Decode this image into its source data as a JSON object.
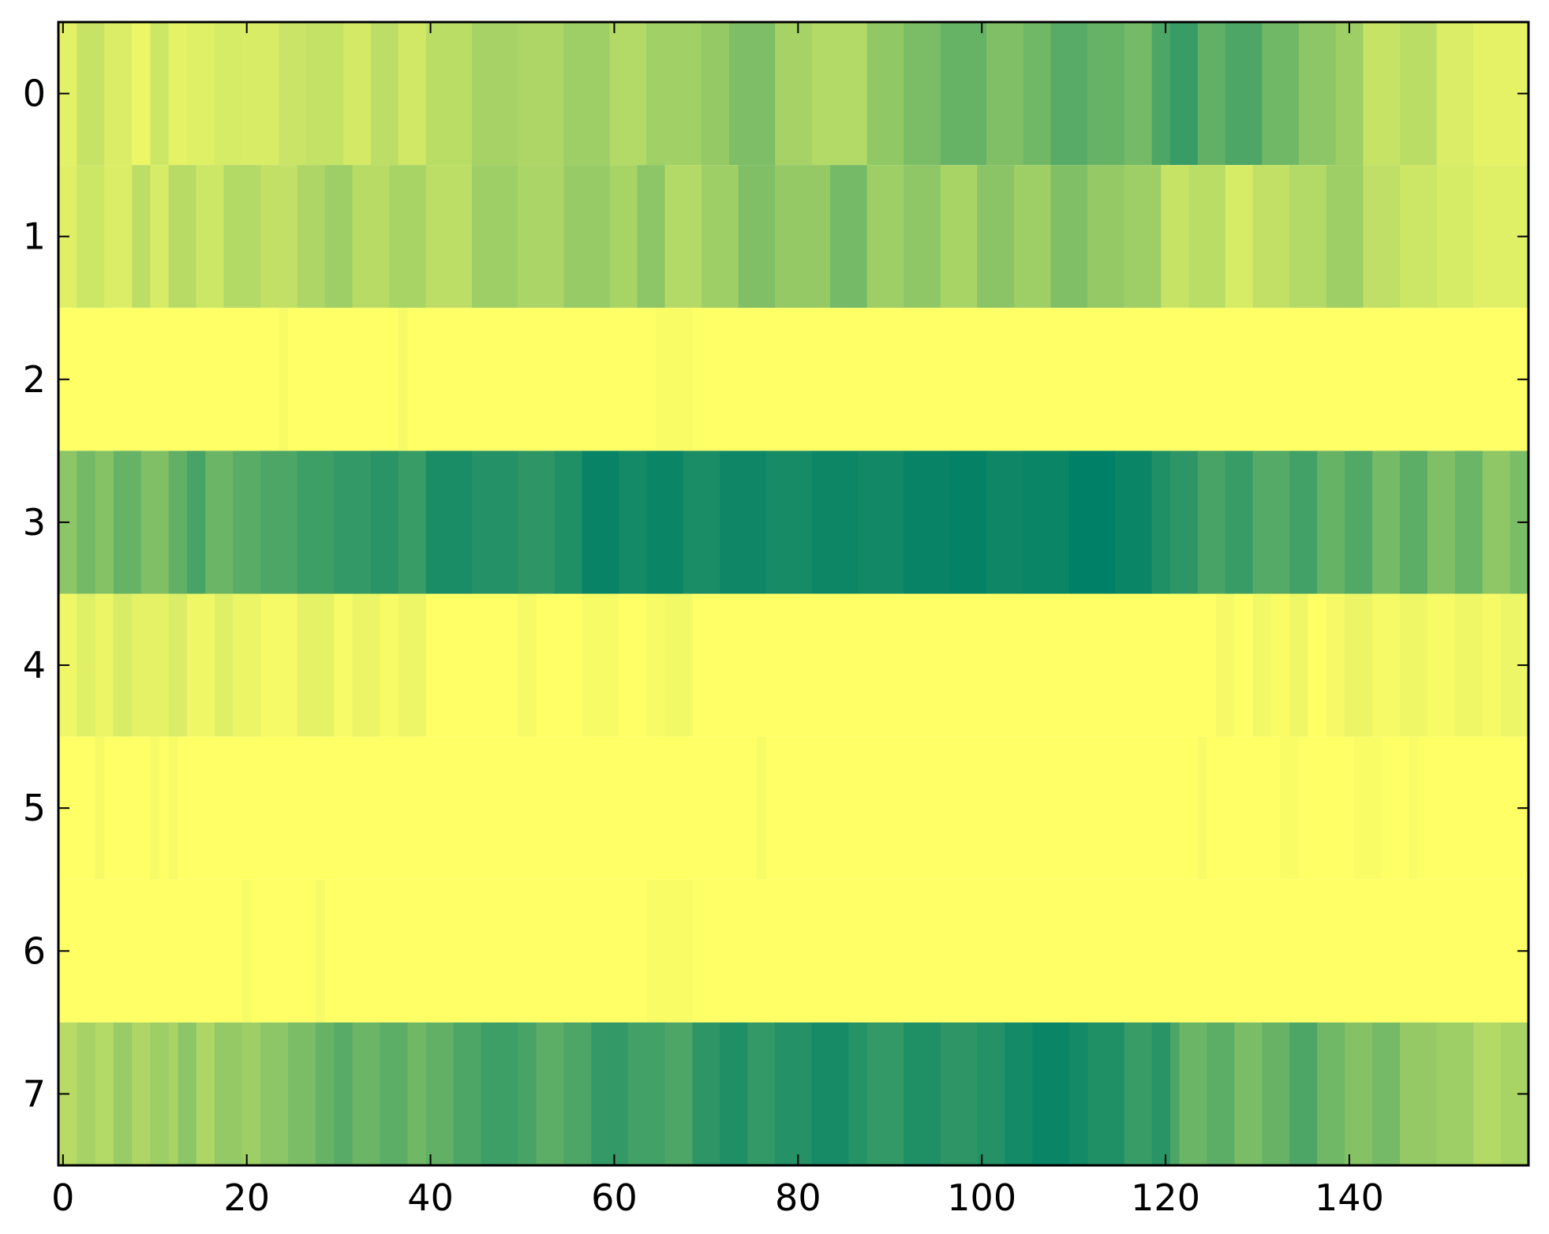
{
  "chart_data": {
    "type": "heatmap",
    "title": "",
    "xlabel": "",
    "ylabel": "",
    "colormap": "summer",
    "value_range": [
      0,
      1
    ],
    "n_columns": 160,
    "n_rows": 8,
    "xlim": [
      -0.5,
      159.5
    ],
    "ylim": [
      7.5,
      -0.5
    ],
    "x_ticks": [
      0,
      20,
      40,
      60,
      80,
      100,
      120,
      140
    ],
    "x_tick_labels": [
      "0",
      "20",
      "40",
      "60",
      "80",
      "100",
      "120",
      "140"
    ],
    "y_ticks": [
      0,
      1,
      2,
      3,
      4,
      5,
      6,
      7
    ],
    "y_tick_labels": [
      "0",
      "1",
      "2",
      "3",
      "4",
      "5",
      "6",
      "7"
    ],
    "grid": false,
    "rows": [
      {
        "row": 0,
        "segments": [
          [
            0,
            0.89
          ],
          [
            2,
            0.78
          ],
          [
            5,
            0.86
          ],
          [
            8,
            0.93
          ],
          [
            10,
            0.8
          ],
          [
            12,
            0.9
          ],
          [
            14,
            0.88
          ],
          [
            17,
            0.84
          ],
          [
            20,
            0.85
          ],
          [
            24,
            0.79
          ],
          [
            27,
            0.77
          ],
          [
            31,
            0.83
          ],
          [
            34,
            0.74
          ],
          [
            37,
            0.82
          ],
          [
            40,
            0.73
          ],
          [
            45,
            0.65
          ],
          [
            50,
            0.68
          ],
          [
            55,
            0.62
          ],
          [
            60,
            0.7
          ],
          [
            64,
            0.63
          ],
          [
            70,
            0.58
          ],
          [
            73,
            0.49
          ],
          [
            78,
            0.65
          ],
          [
            82,
            0.7
          ],
          [
            88,
            0.57
          ],
          [
            92,
            0.48
          ],
          [
            96,
            0.4
          ],
          [
            101,
            0.5
          ],
          [
            105,
            0.44
          ],
          [
            108,
            0.34
          ],
          [
            112,
            0.4
          ],
          [
            116,
            0.46
          ],
          [
            119,
            0.3
          ],
          [
            121,
            0.22
          ],
          [
            124,
            0.38
          ],
          [
            127,
            0.3
          ],
          [
            131,
            0.44
          ],
          [
            135,
            0.55
          ],
          [
            139,
            0.62
          ],
          [
            142,
            0.78
          ],
          [
            146,
            0.73
          ],
          [
            150,
            0.86
          ],
          [
            154,
            0.9
          ]
        ]
      },
      {
        "row": 1,
        "segments": [
          [
            0,
            0.88
          ],
          [
            2,
            0.8
          ],
          [
            5,
            0.86
          ],
          [
            8,
            0.74
          ],
          [
            10,
            0.84
          ],
          [
            12,
            0.72
          ],
          [
            15,
            0.8
          ],
          [
            18,
            0.7
          ],
          [
            22,
            0.76
          ],
          [
            26,
            0.68
          ],
          [
            29,
            0.62
          ],
          [
            32,
            0.72
          ],
          [
            36,
            0.66
          ],
          [
            40,
            0.74
          ],
          [
            45,
            0.62
          ],
          [
            50,
            0.67
          ],
          [
            55,
            0.59
          ],
          [
            60,
            0.66
          ],
          [
            63,
            0.55
          ],
          [
            66,
            0.7
          ],
          [
            70,
            0.62
          ],
          [
            74,
            0.5
          ],
          [
            78,
            0.58
          ],
          [
            84,
            0.46
          ],
          [
            88,
            0.62
          ],
          [
            92,
            0.56
          ],
          [
            96,
            0.66
          ],
          [
            100,
            0.54
          ],
          [
            104,
            0.62
          ],
          [
            108,
            0.5
          ],
          [
            112,
            0.58
          ],
          [
            116,
            0.62
          ],
          [
            120,
            0.78
          ],
          [
            123,
            0.73
          ],
          [
            127,
            0.84
          ],
          [
            130,
            0.76
          ],
          [
            134,
            0.7
          ],
          [
            138,
            0.62
          ],
          [
            142,
            0.75
          ],
          [
            146,
            0.8
          ],
          [
            150,
            0.84
          ],
          [
            154,
            0.88
          ]
        ]
      },
      {
        "row": 2,
        "segments": [
          [
            0,
            1.0
          ],
          [
            24,
            0.97
          ],
          [
            25,
            1.0
          ],
          [
            37,
            0.96
          ],
          [
            38,
            1.0
          ],
          [
            65,
            0.98
          ],
          [
            69,
            1.0
          ]
        ]
      },
      {
        "row": 3,
        "segments": [
          [
            0,
            0.55
          ],
          [
            2,
            0.45
          ],
          [
            4,
            0.52
          ],
          [
            6,
            0.4
          ],
          [
            9,
            0.5
          ],
          [
            12,
            0.38
          ],
          [
            14,
            0.28
          ],
          [
            16,
            0.42
          ],
          [
            19,
            0.35
          ],
          [
            22,
            0.3
          ],
          [
            26,
            0.24
          ],
          [
            30,
            0.2
          ],
          [
            34,
            0.16
          ],
          [
            37,
            0.22
          ],
          [
            40,
            0.1
          ],
          [
            45,
            0.14
          ],
          [
            50,
            0.18
          ],
          [
            54,
            0.12
          ],
          [
            57,
            0.03
          ],
          [
            61,
            0.08
          ],
          [
            64,
            0.04
          ],
          [
            68,
            0.1
          ],
          [
            72,
            0.06
          ],
          [
            77,
            0.09
          ],
          [
            82,
            0.05
          ],
          [
            87,
            0.07
          ],
          [
            92,
            0.03
          ],
          [
            97,
            0.02
          ],
          [
            101,
            0.06
          ],
          [
            105,
            0.04
          ],
          [
            110,
            0.0
          ],
          [
            115,
            0.04
          ],
          [
            119,
            0.12
          ],
          [
            121,
            0.18
          ],
          [
            124,
            0.28
          ],
          [
            127,
            0.22
          ],
          [
            130,
            0.33
          ],
          [
            134,
            0.26
          ],
          [
            137,
            0.4
          ],
          [
            140,
            0.32
          ],
          [
            143,
            0.46
          ],
          [
            146,
            0.36
          ],
          [
            149,
            0.5
          ],
          [
            152,
            0.42
          ],
          [
            155,
            0.56
          ],
          [
            158,
            0.48
          ]
        ]
      },
      {
        "row": 4,
        "segments": [
          [
            0,
            0.94
          ],
          [
            2,
            0.88
          ],
          [
            4,
            0.92
          ],
          [
            6,
            0.85
          ],
          [
            8,
            0.9
          ],
          [
            12,
            0.86
          ],
          [
            14,
            0.94
          ],
          [
            17,
            0.88
          ],
          [
            19,
            0.92
          ],
          [
            22,
            0.96
          ],
          [
            26,
            0.9
          ],
          [
            30,
            0.97
          ],
          [
            32,
            0.92
          ],
          [
            35,
            0.97
          ],
          [
            37,
            0.93
          ],
          [
            40,
            1.0
          ],
          [
            50,
            0.96
          ],
          [
            52,
            1.0
          ],
          [
            57,
            0.97
          ],
          [
            61,
            1.0
          ],
          [
            64,
            0.97
          ],
          [
            66,
            0.95
          ],
          [
            69,
            1.0
          ],
          [
            126,
            0.96
          ],
          [
            128,
            1.0
          ],
          [
            130,
            0.95
          ],
          [
            132,
            0.98
          ],
          [
            134,
            0.94
          ],
          [
            136,
            1.0
          ],
          [
            138,
            0.96
          ],
          [
            140,
            0.92
          ],
          [
            143,
            0.96
          ],
          [
            146,
            0.94
          ],
          [
            149,
            0.97
          ],
          [
            152,
            0.94
          ],
          [
            155,
            0.96
          ],
          [
            157,
            0.93
          ]
        ]
      },
      {
        "row": 5,
        "segments": [
          [
            0,
            1.0
          ],
          [
            4,
            0.96
          ],
          [
            5,
            1.0
          ],
          [
            10,
            0.97
          ],
          [
            11,
            1.0
          ],
          [
            12,
            0.97
          ],
          [
            13,
            1.0
          ],
          [
            76,
            0.97
          ],
          [
            77,
            1.0
          ],
          [
            124,
            0.97
          ],
          [
            125,
            1.0
          ],
          [
            133,
            0.98
          ],
          [
            135,
            1.0
          ],
          [
            141,
            0.98
          ],
          [
            144,
            1.0
          ],
          [
            147,
            0.98
          ],
          [
            148,
            1.0
          ]
        ]
      },
      {
        "row": 6,
        "segments": [
          [
            0,
            1.0
          ],
          [
            20,
            0.97
          ],
          [
            21,
            1.0
          ],
          [
            28,
            0.96
          ],
          [
            29,
            1.0
          ],
          [
            64,
            0.98
          ],
          [
            69,
            1.0
          ]
        ]
      },
      {
        "row": 7,
        "segments": [
          [
            0,
            0.72
          ],
          [
            2,
            0.65
          ],
          [
            4,
            0.7
          ],
          [
            6,
            0.6
          ],
          [
            8,
            0.68
          ],
          [
            10,
            0.62
          ],
          [
            12,
            0.66
          ],
          [
            13,
            0.55
          ],
          [
            15,
            0.68
          ],
          [
            17,
            0.58
          ],
          [
            20,
            0.62
          ],
          [
            22,
            0.55
          ],
          [
            25,
            0.48
          ],
          [
            28,
            0.4
          ],
          [
            30,
            0.34
          ],
          [
            32,
            0.42
          ],
          [
            35,
            0.36
          ],
          [
            38,
            0.44
          ],
          [
            40,
            0.38
          ],
          [
            43,
            0.3
          ],
          [
            46,
            0.24
          ],
          [
            50,
            0.28
          ],
          [
            52,
            0.36
          ],
          [
            55,
            0.3
          ],
          [
            58,
            0.2
          ],
          [
            62,
            0.26
          ],
          [
            66,
            0.3
          ],
          [
            69,
            0.18
          ],
          [
            72,
            0.12
          ],
          [
            75,
            0.2
          ],
          [
            78,
            0.14
          ],
          [
            82,
            0.09
          ],
          [
            86,
            0.15
          ],
          [
            88,
            0.2
          ],
          [
            92,
            0.12
          ],
          [
            96,
            0.18
          ],
          [
            100,
            0.14
          ],
          [
            103,
            0.08
          ],
          [
            106,
            0.04
          ],
          [
            110,
            0.08
          ],
          [
            112,
            0.12
          ],
          [
            116,
            0.22
          ],
          [
            119,
            0.16
          ],
          [
            121,
            0.3
          ],
          [
            122,
            0.42
          ],
          [
            125,
            0.36
          ],
          [
            128,
            0.48
          ],
          [
            131,
            0.4
          ],
          [
            134,
            0.3
          ],
          [
            137,
            0.44
          ],
          [
            140,
            0.52
          ],
          [
            143,
            0.46
          ],
          [
            146,
            0.58
          ],
          [
            150,
            0.62
          ],
          [
            154,
            0.7
          ],
          [
            157,
            0.66
          ]
        ]
      }
    ]
  }
}
